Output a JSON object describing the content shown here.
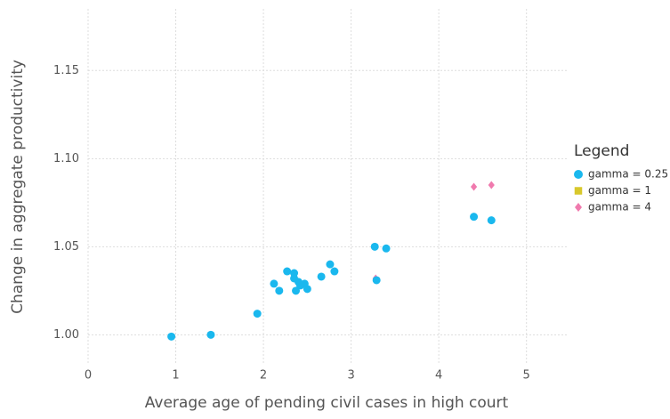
{
  "chart_data": {
    "type": "scatter",
    "x_label": "Average age of pending civil cases in high court",
    "y_label": "Change in aggregate productivity",
    "legend_title": "Legend",
    "legend_position": "right",
    "grid": true,
    "xlim": [
      0,
      5.47
    ],
    "xticks": [
      0,
      1,
      2,
      3,
      4,
      5
    ],
    "ylim": [
      0.983,
      1.185
    ],
    "yticks": [
      {
        "value": 1.0,
        "label": "1.00"
      },
      {
        "value": 1.05,
        "label": "1.05"
      },
      {
        "value": 1.1,
        "label": "1.10"
      },
      {
        "value": 1.15,
        "label": "1.15"
      }
    ],
    "series": [
      {
        "name": "gamma = 0.25",
        "color": "#1ab8ee",
        "marker": "circle",
        "x": [
          0.95,
          1.4,
          1.93,
          2.12,
          2.18,
          2.27,
          2.35,
          2.35,
          2.37,
          2.4,
          2.42,
          2.47,
          2.5,
          2.66,
          2.76,
          2.81,
          3.27,
          3.4,
          3.29,
          4.4,
          4.6
        ],
        "y": [
          0.999,
          1.0,
          1.012,
          1.029,
          1.025,
          1.036,
          1.035,
          1.032,
          1.025,
          1.03,
          1.028,
          1.029,
          1.026,
          1.033,
          1.04,
          1.036,
          1.05,
          1.049,
          1.031,
          1.067,
          1.065
        ]
      },
      {
        "name": "gamma = 1",
        "color": "#d8c82c",
        "marker": "square",
        "x": [],
        "y": []
      },
      {
        "name": "gamma = 4",
        "color": "#f07aae",
        "marker": "diamond",
        "x": [
          3.28,
          4.4,
          4.6
        ],
        "y": [
          1.032,
          1.084,
          1.085
        ]
      }
    ]
  }
}
